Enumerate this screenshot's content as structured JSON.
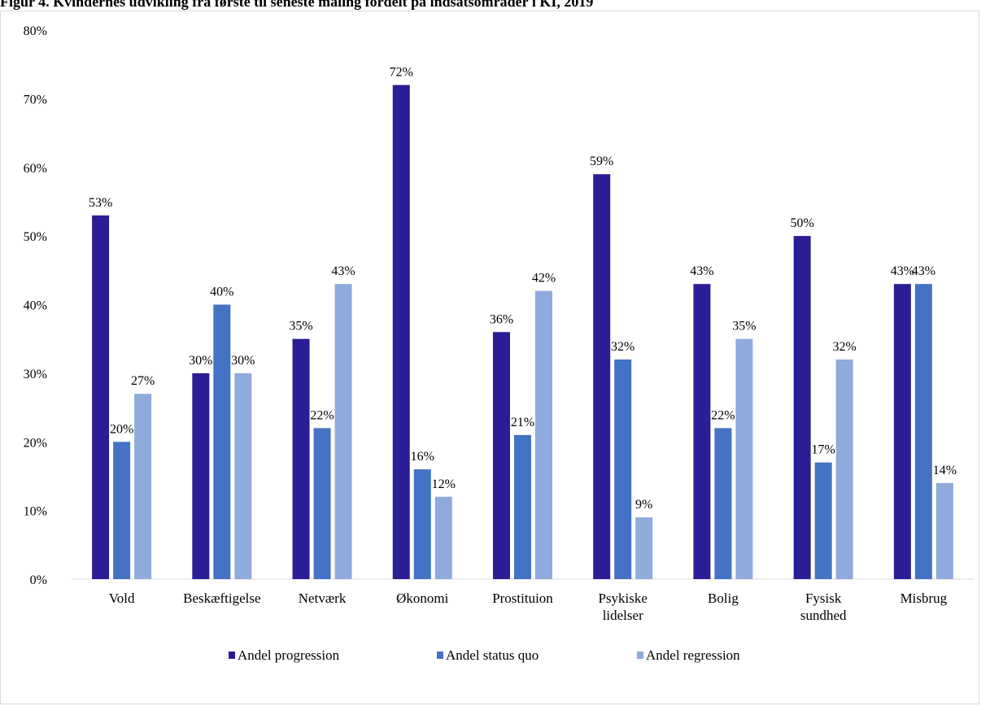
{
  "title": "Figur 4. Kvindernes udvikling fra første til seneste måling fordelt på indsatsområder i KI, 2019",
  "colors": {
    "progression": "#2b1d95",
    "status_quo": "#4472c4",
    "regression": "#8faadc"
  },
  "chart_data": {
    "type": "bar",
    "title": "Figur 4. Kvindernes udvikling fra første til seneste måling fordelt på indsatsområder i KI, 2019",
    "categories": [
      [
        "Vold"
      ],
      [
        "Beskæftigelse"
      ],
      [
        "Netværk"
      ],
      [
        "Økonomi"
      ],
      [
        "Prostituion"
      ],
      [
        "Psykiske",
        "lidelser"
      ],
      [
        "Bolig"
      ],
      [
        "Fysisk",
        "sundhed"
      ],
      [
        "Misbrug"
      ]
    ],
    "series": [
      {
        "name": "Andel progression",
        "values": [
          53,
          30,
          35,
          72,
          36,
          59,
          43,
          50,
          43
        ]
      },
      {
        "name": "Andel status quo",
        "values": [
          20,
          40,
          22,
          16,
          21,
          32,
          22,
          17,
          43
        ]
      },
      {
        "name": "Andel regression",
        "values": [
          27,
          30,
          43,
          12,
          42,
          9,
          35,
          32,
          14
        ]
      }
    ],
    "value_suffix": "%",
    "yticks": [
      "0%",
      "10%",
      "20%",
      "30%",
      "40%",
      "50%",
      "60%",
      "70%",
      "80%"
    ],
    "ylim": [
      0,
      80
    ],
    "xlabel": "",
    "ylabel": "",
    "grid": false,
    "legend": "bottom"
  }
}
